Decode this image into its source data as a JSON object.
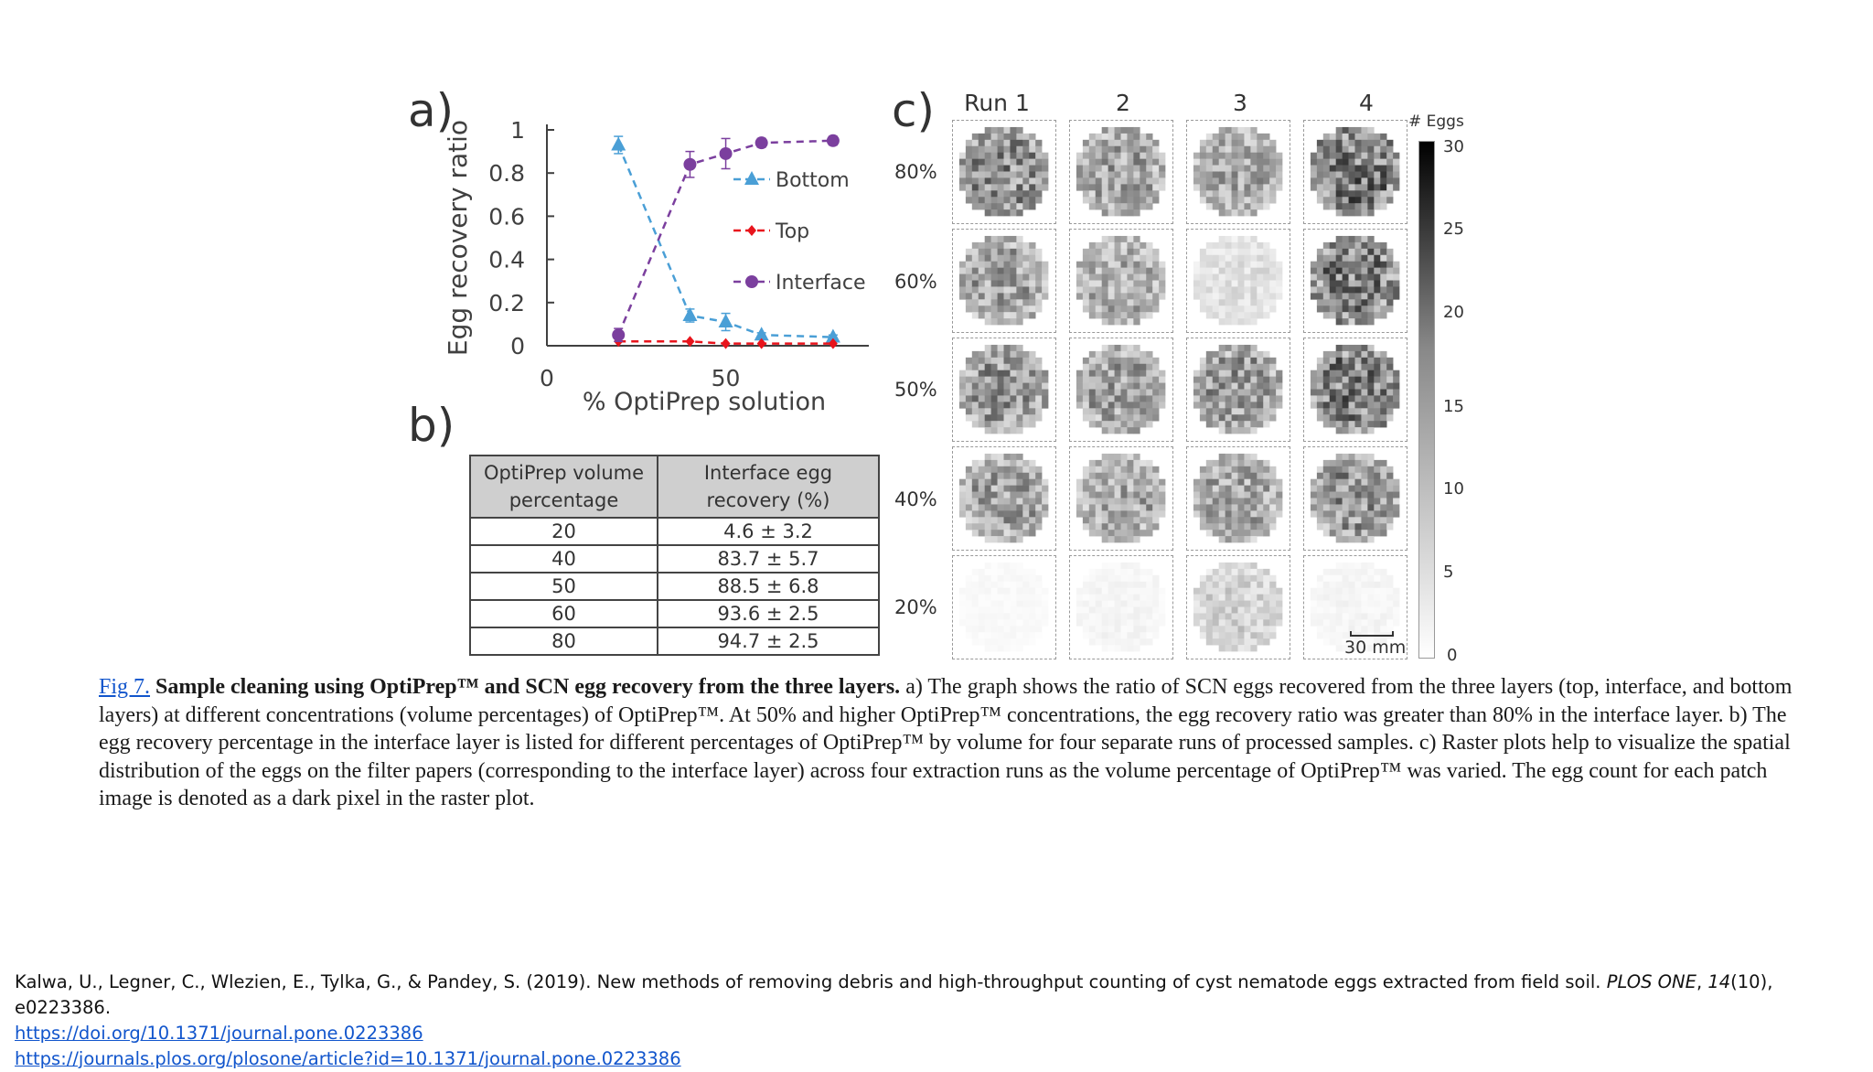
{
  "figure": {
    "panel_a_label": "a)",
    "panel_b_label": "b)",
    "panel_c_label": "c)"
  },
  "chart_data": {
    "type": "line",
    "ylabel": "Egg recovery ratio",
    "xlabel": "% OptiPrep solution",
    "x_ticks": [
      "0",
      "50"
    ],
    "y_ticks": [
      "0",
      "0.2",
      "0.4",
      "0.6",
      "0.8",
      "1"
    ],
    "xlim": [
      0,
      90
    ],
    "ylim": [
      0,
      1
    ],
    "x": [
      20,
      40,
      50,
      60,
      80
    ],
    "series": [
      {
        "name": "Bottom",
        "marker": "triangle",
        "color": "#4a9fd6",
        "values": [
          0.93,
          0.14,
          0.11,
          0.05,
          0.04
        ],
        "errors": [
          0.04,
          0.03,
          0.04,
          0.01,
          0.01
        ]
      },
      {
        "name": "Top",
        "marker": "diamond",
        "color": "#e8141c",
        "values": [
          0.02,
          0.02,
          0.01,
          0.01,
          0.01
        ],
        "errors": [
          0,
          0,
          0,
          0,
          0
        ]
      },
      {
        "name": "Interface",
        "marker": "circle",
        "color": "#7b3f9e",
        "values": [
          0.05,
          0.84,
          0.89,
          0.94,
          0.95
        ],
        "errors": [
          0.03,
          0.06,
          0.07,
          0.02,
          0.02
        ]
      }
    ]
  },
  "table": {
    "headers": [
      [
        "OptiPrep volume",
        "percentage"
      ],
      [
        "Interface egg",
        "recovery (%)"
      ]
    ],
    "rows": [
      [
        "20",
        "4.6 ± 3.2"
      ],
      [
        "40",
        "83.7 ± 5.7"
      ],
      [
        "50",
        "88.5 ± 6.8"
      ],
      [
        "60",
        "93.6 ± 2.5"
      ],
      [
        "80",
        "94.7 ± 2.5"
      ]
    ]
  },
  "raster": {
    "columns": [
      "Run 1",
      "2",
      "3",
      "4"
    ],
    "rows": [
      "80%",
      "60%",
      "50%",
      "40%",
      "20%"
    ],
    "colorbar_title": "# Eggs",
    "colorbar_ticks": [
      "30",
      "25",
      "20",
      "15",
      "10",
      "5",
      "0"
    ],
    "scale_bar": "30 mm"
  },
  "caption": {
    "fig_link": "Fig 7.",
    "title": "Sample cleaning using OptiPrep™ and SCN egg recovery from the three layers.",
    "body": "a) The graph shows the ratio of SCN eggs recovered from the three layers (top, interface, and bottom layers) at different concentrations (volume percentages) of OptiPrep™. At 50% and higher OptiPrep™ concentrations, the egg recovery ratio was greater than 80% in the interface layer. b) The egg recovery percentage in the interface layer is listed for different percentages of OptiPrep™ by volume for four separate runs of processed samples. c) Raster plots help to visualize the spatial distribution of the eggs on the filter papers (corresponding to the interface layer) across four extraction runs as the volume percentage of OptiPrep™ was varied. The egg count for each patch image is denoted as a dark pixel in the raster plot."
  },
  "citation": {
    "authors": "Kalwa, U., Legner, C., Wlezien, E., Tylka, G., & Pandey, S. (2019). New methods of removing debris and high-throughput counting of cyst nematode eggs extracted from field soil. ",
    "journal": "PLOS ONE",
    "volume": "14",
    "issue_pages": "(10), e0223386.",
    "doi_link": "https://doi.org/10.1371/journal.pone.0223386",
    "article_link": "https://journals.plos.org/plosone/article?id=10.1371/journal.pone.0223386"
  }
}
